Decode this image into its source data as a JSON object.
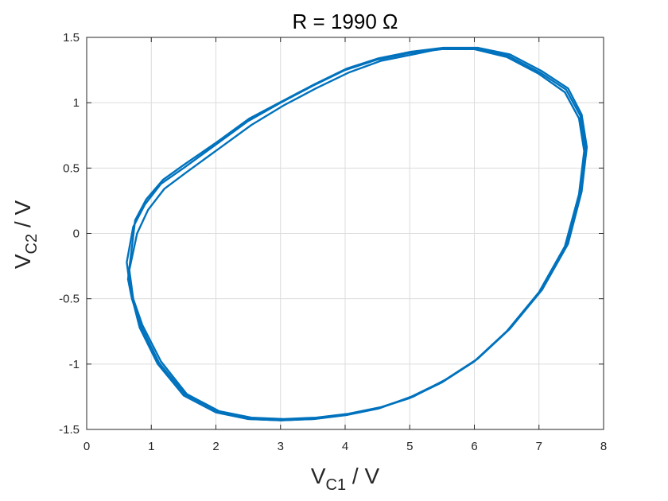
{
  "chart_data": {
    "type": "line",
    "title": "R = 1990 Ω",
    "xlabel": {
      "main": "V",
      "sub": "C1",
      "unit": " / V"
    },
    "ylabel": {
      "main": "V",
      "sub": "C2",
      "unit": " / V"
    },
    "xlim": [
      0,
      8
    ],
    "ylim": [
      -1.5,
      1.5
    ],
    "xticks": [
      0,
      1,
      2,
      3,
      4,
      5,
      6,
      7,
      8
    ],
    "xtick_labels": [
      "0",
      "1",
      "2",
      "3",
      "4",
      "5",
      "6",
      "7",
      "8"
    ],
    "yticks": [
      -1.5,
      -1,
      -0.5,
      0,
      0.5,
      1,
      1.5
    ],
    "ytick_labels": [
      "-1.5",
      "-1",
      "-0.5",
      "0",
      "0.5",
      "1",
      "1.5"
    ],
    "grid": true,
    "box": true,
    "series": [
      {
        "color": "#0072BD",
        "loops": [
          {
            "x": [
              0.62,
              0.72,
              0.9,
              1.15,
              1.5,
              2.0,
              2.5,
              3.0,
              3.5,
              4.0,
              4.5,
              5.0,
              5.5,
              6.0,
              6.5,
              7.0,
              7.4,
              7.62,
              7.7,
              7.62,
              7.4,
              7.0,
              6.5,
              6.0,
              5.5,
              5.0,
              4.5,
              4.0,
              3.5,
              3.0,
              2.5,
              2.0,
              1.5,
              1.1,
              0.82,
              0.68,
              0.62
            ],
            "y": [
              -0.22,
              0.05,
              0.22,
              0.38,
              0.5,
              0.68,
              0.86,
              1.0,
              1.13,
              1.25,
              1.33,
              1.38,
              1.41,
              1.41,
              1.35,
              1.22,
              1.08,
              0.88,
              0.63,
              0.3,
              -0.1,
              -0.45,
              -0.75,
              -0.98,
              -1.14,
              -1.26,
              -1.34,
              -1.39,
              -1.42,
              -1.43,
              -1.42,
              -1.37,
              -1.24,
              -1.0,
              -0.72,
              -0.45,
              -0.22
            ]
          },
          {
            "x": [
              0.66,
              0.78,
              0.95,
              1.2,
              1.55,
              2.05,
              2.55,
              3.05,
              3.55,
              4.05,
              4.55,
              5.05,
              5.55,
              6.05,
              6.55,
              7.05,
              7.45,
              7.66,
              7.74,
              7.66,
              7.45,
              7.05,
              6.55,
              6.05,
              5.55,
              5.05,
              4.55,
              4.05,
              3.55,
              3.05,
              2.55,
              2.05,
              1.55,
              1.15,
              0.86,
              0.72,
              0.66
            ],
            "y": [
              -0.28,
              0.0,
              0.18,
              0.34,
              0.47,
              0.65,
              0.83,
              0.98,
              1.11,
              1.23,
              1.32,
              1.37,
              1.42,
              1.42,
              1.37,
              1.24,
              1.11,
              0.91,
              0.66,
              0.32,
              -0.08,
              -0.43,
              -0.73,
              -0.96,
              -1.12,
              -1.25,
              -1.33,
              -1.38,
              -1.41,
              -1.42,
              -1.41,
              -1.36,
              -1.23,
              -0.98,
              -0.7,
              -0.5,
              -0.28
            ]
          },
          {
            "x": [
              0.64,
              0.75,
              0.92,
              1.18,
              1.52,
              2.02,
              2.52,
              3.02,
              3.52,
              4.02,
              4.52,
              5.02,
              5.52,
              6.02,
              6.52,
              7.02,
              7.42,
              7.64,
              7.72,
              7.64,
              7.42,
              7.02,
              6.52,
              6.02,
              5.52,
              5.02,
              4.52,
              4.02,
              3.52,
              3.02,
              2.52,
              2.02,
              1.52,
              1.12,
              0.84,
              0.7,
              0.64
            ],
            "y": [
              -0.35,
              0.1,
              0.26,
              0.41,
              0.53,
              0.7,
              0.88,
              1.01,
              1.14,
              1.26,
              1.34,
              1.39,
              1.42,
              1.41,
              1.36,
              1.23,
              1.1,
              0.9,
              0.64,
              0.31,
              -0.09,
              -0.44,
              -0.74,
              -0.97,
              -1.13,
              -1.25,
              -1.34,
              -1.39,
              -1.42,
              -1.43,
              -1.42,
              -1.36,
              -1.23,
              -0.99,
              -0.71,
              -0.5,
              -0.35
            ]
          }
        ]
      }
    ]
  }
}
